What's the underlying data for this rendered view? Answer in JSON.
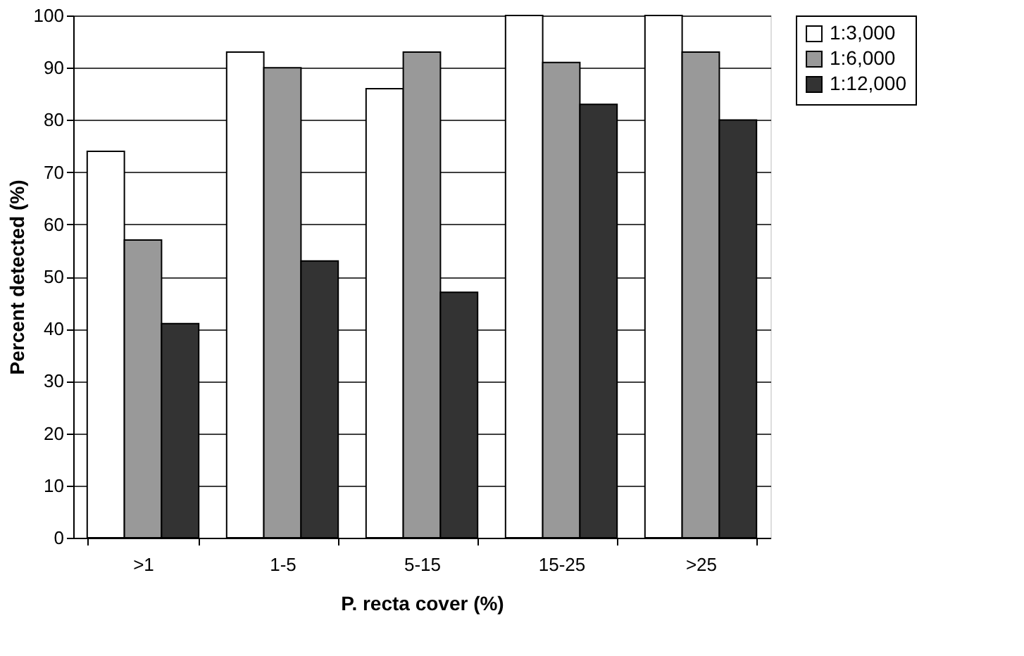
{
  "chart_data": {
    "type": "bar",
    "xlabel": "P. recta cover (%)",
    "ylabel": "Percent detected (%)",
    "categories": [
      ">1",
      "1-5",
      "5-15",
      "15-25",
      ">25"
    ],
    "series": [
      {
        "name": "1:3,000",
        "color": "#ffffff",
        "values": [
          74,
          93,
          86,
          100,
          100
        ]
      },
      {
        "name": "1:6,000",
        "color": "#999999",
        "values": [
          57,
          90,
          93,
          91,
          93
        ]
      },
      {
        "name": "1:12,000",
        "color": "#333333",
        "values": [
          41,
          53,
          47,
          83,
          80
        ]
      }
    ],
    "ylim": [
      0,
      100
    ],
    "yticks": [
      0,
      10,
      20,
      30,
      40,
      50,
      60,
      70,
      80,
      90,
      100
    ],
    "grid": "y",
    "legend": "right"
  }
}
